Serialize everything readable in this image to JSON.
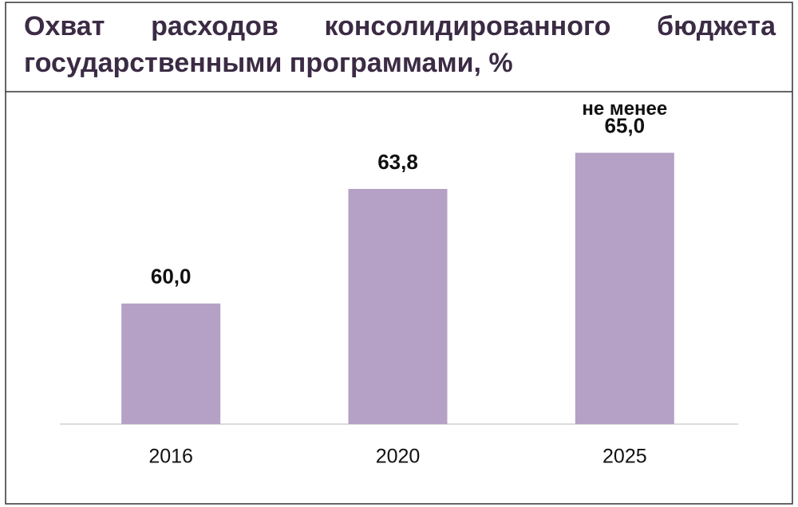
{
  "chart_data": {
    "type": "bar",
    "title": "Охват расходов консолидированного бюджета государственными программами, %",
    "categories": [
      "2016",
      "2020",
      "2025"
    ],
    "values": [
      60.0,
      63.8,
      65.0
    ],
    "value_labels": [
      "60,0",
      "63,8",
      "65,0"
    ],
    "annotation": "не менее",
    "color": "#b4a1c5",
    "ylim": [
      56,
      67
    ]
  }
}
